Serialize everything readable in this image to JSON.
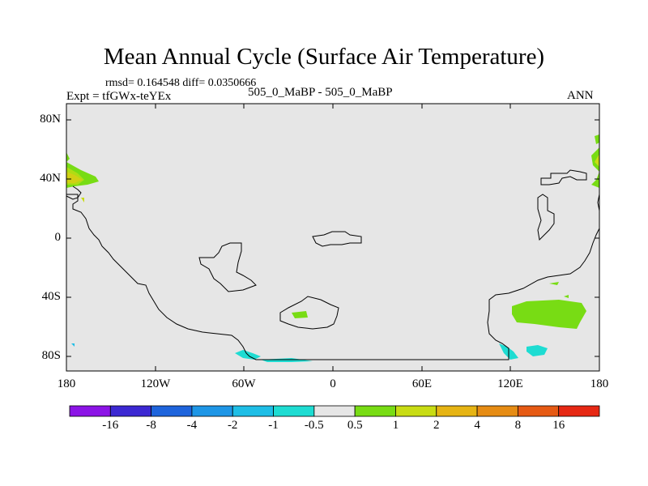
{
  "title": "Mean Annual Cycle (Surface Air Temperature)",
  "stats_line": "rmsd= 0.164548 diff= 0.0350666",
  "experiment_line": "Expt = tfGWx-teYEx",
  "case_line": "505_0_MaBP - 505_0_MaBP",
  "season": "ANN",
  "map": {
    "background_color": "#e6e6e6",
    "lat_ticks": [
      "80N",
      "40N",
      "0",
      "40S",
      "80S"
    ],
    "lon_ticks": [
      "180",
      "120W",
      "60W",
      "0",
      "60E",
      "120E",
      "180"
    ]
  },
  "colorbar": {
    "labels": [
      "-16",
      "-8",
      "-4",
      "-2",
      "-1",
      "-0.5",
      "0.5",
      "1",
      "2",
      "4",
      "8",
      "16"
    ],
    "colors": [
      "#8c14e6",
      "#3c28d2",
      "#1e64dc",
      "#1e96e6",
      "#1ebee6",
      "#1edcd2",
      "#e6e6e6",
      "#78dc14",
      "#c8dc14",
      "#e6b414",
      "#e68c14",
      "#e65a14",
      "#e62814"
    ]
  }
}
